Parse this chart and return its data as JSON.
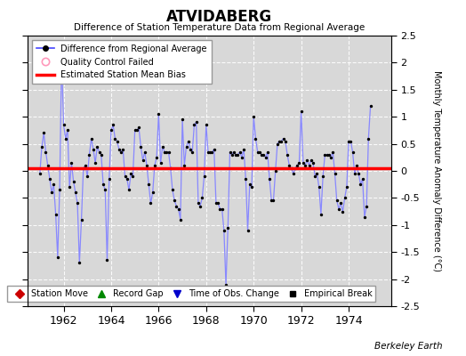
{
  "title": "ATVIDABERG",
  "subtitle": "Difference of Station Temperature Data from Regional Average",
  "ylabel": "Monthly Temperature Anomaly Difference (°C)",
  "xlim": [
    1960.5,
    1975.8
  ],
  "ylim": [
    -2.5,
    2.5
  ],
  "yticks": [
    -2.5,
    -2,
    -1.5,
    -1,
    -0.5,
    0,
    0.5,
    1,
    1.5,
    2,
    2.5
  ],
  "xticks": [
    1962,
    1964,
    1966,
    1968,
    1970,
    1972,
    1974
  ],
  "bias_value": 0.05,
  "line_color": "#8888ff",
  "dot_color": "#000000",
  "bias_color": "#ff0000",
  "plot_bg_color": "#d8d8d8",
  "fig_bg_color": "#ffffff",
  "grid_color": "#ffffff",
  "credit": "Berkeley Earth",
  "data": [
    [
      1961.0,
      -0.05
    ],
    [
      1961.083,
      0.45
    ],
    [
      1961.167,
      0.7
    ],
    [
      1961.25,
      0.35
    ],
    [
      1961.333,
      0.1
    ],
    [
      1961.417,
      -0.15
    ],
    [
      1961.5,
      -0.4
    ],
    [
      1961.583,
      -0.25
    ],
    [
      1961.667,
      -0.8
    ],
    [
      1961.75,
      -1.6
    ],
    [
      1961.833,
      -0.35
    ],
    [
      1961.917,
      2.1
    ],
    [
      1962.0,
      0.85
    ],
    [
      1962.083,
      0.6
    ],
    [
      1962.167,
      0.75
    ],
    [
      1962.25,
      -0.3
    ],
    [
      1962.333,
      0.15
    ],
    [
      1962.417,
      -0.2
    ],
    [
      1962.5,
      -0.4
    ],
    [
      1962.583,
      -0.6
    ],
    [
      1962.667,
      -1.7
    ],
    [
      1962.75,
      -0.9
    ],
    [
      1962.833,
      0.05
    ],
    [
      1962.917,
      0.1
    ],
    [
      1963.0,
      -0.1
    ],
    [
      1963.083,
      0.3
    ],
    [
      1963.167,
      0.6
    ],
    [
      1963.25,
      0.4
    ],
    [
      1963.333,
      0.15
    ],
    [
      1963.417,
      0.45
    ],
    [
      1963.5,
      0.35
    ],
    [
      1963.583,
      0.3
    ],
    [
      1963.667,
      -0.25
    ],
    [
      1963.75,
      -0.35
    ],
    [
      1963.833,
      -1.65
    ],
    [
      1963.917,
      -0.15
    ],
    [
      1964.0,
      0.75
    ],
    [
      1964.083,
      0.85
    ],
    [
      1964.167,
      0.6
    ],
    [
      1964.25,
      0.55
    ],
    [
      1964.333,
      0.4
    ],
    [
      1964.417,
      0.35
    ],
    [
      1964.5,
      0.4
    ],
    [
      1964.583,
      -0.1
    ],
    [
      1964.667,
      -0.15
    ],
    [
      1964.75,
      -0.35
    ],
    [
      1964.833,
      -0.05
    ],
    [
      1964.917,
      -0.1
    ],
    [
      1965.0,
      0.75
    ],
    [
      1965.083,
      0.75
    ],
    [
      1965.167,
      0.8
    ],
    [
      1965.25,
      0.45
    ],
    [
      1965.333,
      0.2
    ],
    [
      1965.417,
      0.35
    ],
    [
      1965.5,
      0.1
    ],
    [
      1965.583,
      -0.25
    ],
    [
      1965.667,
      -0.6
    ],
    [
      1965.75,
      -0.4
    ],
    [
      1965.833,
      0.1
    ],
    [
      1965.917,
      0.25
    ],
    [
      1966.0,
      1.05
    ],
    [
      1966.083,
      0.15
    ],
    [
      1966.167,
      0.45
    ],
    [
      1966.25,
      0.35
    ],
    [
      1966.333,
      0.35
    ],
    [
      1966.417,
      0.35
    ],
    [
      1966.5,
      0.05
    ],
    [
      1966.583,
      -0.35
    ],
    [
      1966.667,
      -0.55
    ],
    [
      1966.75,
      -0.65
    ],
    [
      1966.833,
      -0.7
    ],
    [
      1966.917,
      -0.9
    ],
    [
      1967.0,
      0.95
    ],
    [
      1967.083,
      0.1
    ],
    [
      1967.167,
      0.45
    ],
    [
      1967.25,
      0.55
    ],
    [
      1967.333,
      0.4
    ],
    [
      1967.417,
      0.35
    ],
    [
      1967.5,
      0.85
    ],
    [
      1967.583,
      0.9
    ],
    [
      1967.667,
      -0.6
    ],
    [
      1967.75,
      -0.65
    ],
    [
      1967.833,
      -0.5
    ],
    [
      1967.917,
      -0.1
    ],
    [
      1968.0,
      0.85
    ],
    [
      1968.083,
      0.35
    ],
    [
      1968.167,
      0.35
    ],
    [
      1968.25,
      0.35
    ],
    [
      1968.333,
      0.4
    ],
    [
      1968.417,
      -0.6
    ],
    [
      1968.5,
      -0.6
    ],
    [
      1968.583,
      -0.7
    ],
    [
      1968.667,
      -0.7
    ],
    [
      1968.75,
      -1.1
    ],
    [
      1968.833,
      -2.1
    ],
    [
      1968.917,
      -1.05
    ],
    [
      1969.0,
      0.35
    ],
    [
      1969.083,
      0.3
    ],
    [
      1969.167,
      0.35
    ],
    [
      1969.25,
      0.3
    ],
    [
      1969.333,
      0.3
    ],
    [
      1969.417,
      0.35
    ],
    [
      1969.5,
      0.25
    ],
    [
      1969.583,
      0.4
    ],
    [
      1969.667,
      -0.15
    ],
    [
      1969.75,
      -1.1
    ],
    [
      1969.833,
      -0.25
    ],
    [
      1969.917,
      -0.3
    ],
    [
      1970.0,
      1.0
    ],
    [
      1970.083,
      0.6
    ],
    [
      1970.167,
      0.35
    ],
    [
      1970.25,
      0.35
    ],
    [
      1970.333,
      0.3
    ],
    [
      1970.417,
      0.3
    ],
    [
      1970.5,
      0.25
    ],
    [
      1970.583,
      0.35
    ],
    [
      1970.667,
      -0.15
    ],
    [
      1970.75,
      -0.55
    ],
    [
      1970.833,
      -0.55
    ],
    [
      1970.917,
      0.0
    ],
    [
      1971.0,
      0.5
    ],
    [
      1971.083,
      0.55
    ],
    [
      1971.167,
      0.55
    ],
    [
      1971.25,
      0.6
    ],
    [
      1971.333,
      0.55
    ],
    [
      1971.417,
      0.3
    ],
    [
      1971.5,
      0.1
    ],
    [
      1971.583,
      0.05
    ],
    [
      1971.667,
      -0.05
    ],
    [
      1971.75,
      0.05
    ],
    [
      1971.833,
      0.1
    ],
    [
      1971.917,
      0.15
    ],
    [
      1972.0,
      1.1
    ],
    [
      1972.083,
      0.15
    ],
    [
      1972.167,
      0.1
    ],
    [
      1972.25,
      0.2
    ],
    [
      1972.333,
      0.1
    ],
    [
      1972.417,
      0.2
    ],
    [
      1972.5,
      0.15
    ],
    [
      1972.583,
      -0.1
    ],
    [
      1972.667,
      -0.05
    ],
    [
      1972.75,
      -0.3
    ],
    [
      1972.833,
      -0.8
    ],
    [
      1972.917,
      -0.1
    ],
    [
      1973.0,
      0.3
    ],
    [
      1973.083,
      0.3
    ],
    [
      1973.167,
      0.3
    ],
    [
      1973.25,
      0.25
    ],
    [
      1973.333,
      0.35
    ],
    [
      1973.417,
      -0.05
    ],
    [
      1973.5,
      -0.55
    ],
    [
      1973.583,
      -0.7
    ],
    [
      1973.667,
      -0.6
    ],
    [
      1973.75,
      -0.75
    ],
    [
      1973.833,
      -0.5
    ],
    [
      1973.917,
      -0.3
    ],
    [
      1974.0,
      0.55
    ],
    [
      1974.083,
      0.55
    ],
    [
      1974.167,
      0.35
    ],
    [
      1974.25,
      -0.05
    ],
    [
      1974.333,
      0.1
    ],
    [
      1974.417,
      -0.05
    ],
    [
      1974.5,
      -0.25
    ],
    [
      1974.583,
      -0.15
    ],
    [
      1974.667,
      -0.85
    ],
    [
      1974.75,
      -0.65
    ],
    [
      1974.833,
      0.6
    ],
    [
      1974.917,
      1.2
    ]
  ]
}
